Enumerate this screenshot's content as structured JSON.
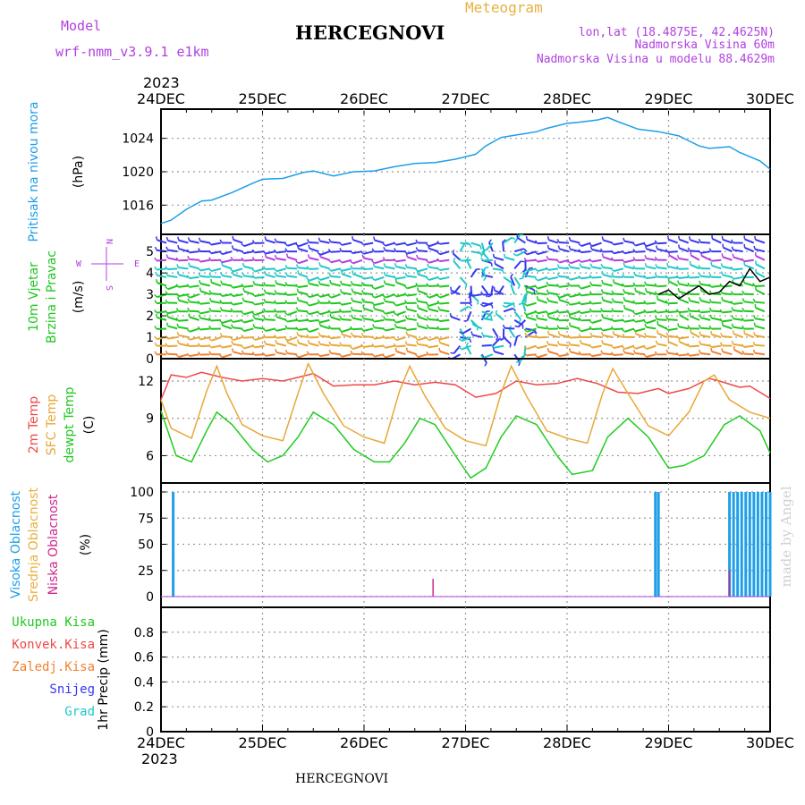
{
  "header": {
    "model_label": "Model",
    "model_name": "wrf-nmm_v3.9.1 e1km",
    "title": "HERCEGNOVI",
    "meteogram": "Meteogram",
    "lonlat": "lon,lat (18.4875E, 42.4625N)",
    "elevation": "Nadmorska Visina 60m",
    "model_elevation": "Nadmorska Visina u modelu 88.4629m",
    "footer_title": "HERCEGNOVI",
    "credit": "made by Angel"
  },
  "colors": {
    "pressure": "#1e9fe8",
    "temp2m": "#f04848",
    "sfc": "#e8a838",
    "dewpt": "#20cc20",
    "high": "#1e9fe8",
    "mid": "#e8b040",
    "low": "#d02890",
    "purple": "#b040e0",
    "green": "#20c820",
    "red": "#f04848",
    "orange": "#f08030",
    "blue": "#3838f0",
    "cyan": "#20c8c8"
  },
  "chart_data": [
    {
      "type": "line",
      "panel": "pressure",
      "year": "2023",
      "x_labels": [
        "24DEC",
        "25DEC",
        "26DEC",
        "27DEC",
        "28DEC",
        "29DEC",
        "30DEC"
      ],
      "ylabel_1": "Pritisak na nivou mora",
      "unit": "(hPa)",
      "ylim": [
        1012.5,
        1027.5
      ],
      "yticks": [
        1016,
        1020,
        1024
      ],
      "series": [
        {
          "x": [
            0,
            0.1,
            0.25,
            0.4,
            0.5,
            0.7,
            0.9,
            1.0,
            1.2,
            1.4,
            1.5,
            1.7,
            1.9,
            2.1,
            2.3,
            2.5,
            2.7,
            2.9,
            3.1,
            3.2,
            3.35,
            3.5,
            3.6,
            3.7,
            3.8,
            4.0,
            4.1,
            4.3,
            4.4,
            4.5,
            4.7,
            4.9,
            5.1,
            5.3,
            5.4,
            5.6,
            5.7,
            5.9,
            6.0
          ],
          "y": [
            1013.8,
            1014.2,
            1015.5,
            1016.5,
            1016.6,
            1017.5,
            1018.6,
            1019.1,
            1019.2,
            1019.9,
            1020.1,
            1019.5,
            1020.0,
            1020.1,
            1020.6,
            1021.0,
            1021.1,
            1021.5,
            1022.1,
            1023.1,
            1024.1,
            1024.4,
            1024.6,
            1024.8,
            1025.2,
            1025.8,
            1025.9,
            1026.2,
            1026.5,
            1026.0,
            1025.1,
            1024.8,
            1024.3,
            1023.1,
            1022.8,
            1023.0,
            1022.3,
            1021.3,
            1020.3
          ]
        }
      ]
    },
    {
      "type": "scatter",
      "panel": "wind",
      "ylabel_1": "10m Vjetar",
      "ylabel_2": "Brzina i Pravac",
      "unit": "(m/s)",
      "ylim": [
        0,
        5.8
      ],
      "yticks": [
        0,
        1,
        2,
        3,
        4,
        5
      ],
      "compass": {
        "n": "N",
        "w": "W",
        "e": "E",
        "s": "S"
      },
      "barb_levels": [
        0.2,
        0.6,
        1.0,
        1.4,
        1.8,
        2.2,
        2.6,
        3.0,
        3.4,
        3.8,
        4.2,
        4.6,
        5.0,
        5.4
      ],
      "speed_series": {
        "x": [
          4.9,
          5.0,
          5.1,
          5.2,
          5.3,
          5.4,
          5.5,
          5.6,
          5.7,
          5.8,
          5.9,
          6.0
        ],
        "y": [
          3.0,
          3.2,
          2.8,
          3.1,
          3.4,
          3.0,
          3.1,
          3.6,
          3.4,
          4.2,
          3.6,
          3.8
        ]
      }
    },
    {
      "type": "line",
      "panel": "temperature",
      "ylabel_1": "2m Temp",
      "ylabel_2": "SFC Temp",
      "ylabel_3": "dewpt Temp",
      "unit": "(C)",
      "ylim": [
        3.8,
        13.8
      ],
      "yticks": [
        6,
        9,
        12
      ],
      "series": [
        {
          "name": "2m Temp",
          "x": [
            0,
            0.1,
            0.25,
            0.4,
            0.6,
            0.8,
            1.0,
            1.2,
            1.4,
            1.5,
            1.7,
            1.9,
            2.1,
            2.3,
            2.5,
            2.7,
            2.9,
            3.1,
            3.3,
            3.4,
            3.5,
            3.7,
            3.9,
            4.1,
            4.3,
            4.5,
            4.7,
            4.9,
            5.0,
            5.2,
            5.4,
            5.5,
            5.7,
            5.8,
            6.0
          ],
          "y": [
            10.5,
            12.5,
            12.3,
            12.7,
            12.3,
            12.0,
            12.2,
            12.0,
            12.4,
            12.6,
            11.6,
            11.7,
            11.7,
            12.0,
            11.7,
            11.9,
            11.7,
            10.7,
            11.0,
            11.5,
            12.0,
            11.7,
            11.8,
            12.2,
            11.8,
            11.1,
            11.0,
            11.4,
            11.0,
            11.4,
            12.2,
            12.0,
            11.5,
            11.6,
            10.6
          ]
        },
        {
          "name": "SFC Temp",
          "x": [
            0,
            0.1,
            0.3,
            0.45,
            0.55,
            0.65,
            0.8,
            1.0,
            1.2,
            1.35,
            1.45,
            1.6,
            1.8,
            2.0,
            2.2,
            2.35,
            2.45,
            2.6,
            2.8,
            3.0,
            3.2,
            3.35,
            3.45,
            3.6,
            3.8,
            4.0,
            4.2,
            4.35,
            4.45,
            4.6,
            4.8,
            5.0,
            5.2,
            5.35,
            5.45,
            5.6,
            5.8,
            6.0
          ],
          "y": [
            10.5,
            8.2,
            7.4,
            11.2,
            13.2,
            11.0,
            8.5,
            7.6,
            7.2,
            11.0,
            13.4,
            11.0,
            8.4,
            7.5,
            7.0,
            11.2,
            13.2,
            10.8,
            8.2,
            7.2,
            6.8,
            11.0,
            13.2,
            10.8,
            8.0,
            7.4,
            7.0,
            11.0,
            13.0,
            11.0,
            8.4,
            7.6,
            9.5,
            12.0,
            12.5,
            10.5,
            9.5,
            9.0
          ]
        },
        {
          "name": "dewpt Temp",
          "x": [
            0,
            0.15,
            0.3,
            0.45,
            0.55,
            0.7,
            0.9,
            1.05,
            1.2,
            1.35,
            1.5,
            1.7,
            1.9,
            2.1,
            2.25,
            2.4,
            2.55,
            2.7,
            2.9,
            3.05,
            3.2,
            3.35,
            3.5,
            3.7,
            3.9,
            4.05,
            4.25,
            4.4,
            4.6,
            4.8,
            5.0,
            5.15,
            5.35,
            5.55,
            5.7,
            5.9,
            6.0
          ],
          "y": [
            9.6,
            6.0,
            5.5,
            8.0,
            9.5,
            8.5,
            6.5,
            5.5,
            6.0,
            7.5,
            9.5,
            8.5,
            6.5,
            5.5,
            5.5,
            7.0,
            9.0,
            8.5,
            6.0,
            4.2,
            5.0,
            7.5,
            9.2,
            8.5,
            6.0,
            4.5,
            4.8,
            7.5,
            9.0,
            7.5,
            5.0,
            5.2,
            6.0,
            8.5,
            9.2,
            8.0,
            6.2
          ]
        }
      ]
    },
    {
      "type": "bar",
      "panel": "cloud",
      "ylabel_1": "Visoka Oblacnost",
      "ylabel_2": "Srednja Oblacnost",
      "ylabel_3": "Niska Oblacnost",
      "unit": "(%)",
      "ylim": [
        0,
        100
      ],
      "yticks": [
        0,
        25,
        50,
        75,
        100
      ],
      "series": [
        {
          "name": "Visoka Oblacnost",
          "x": [
            0.12,
            4.87,
            4.9,
            5.6,
            5.64,
            5.68,
            5.72,
            5.76,
            5.8,
            5.84,
            5.88,
            5.92,
            5.96,
            6.0
          ],
          "y": [
            100,
            100,
            100,
            100,
            100,
            100,
            100,
            100,
            100,
            100,
            100,
            100,
            100,
            100
          ]
        },
        {
          "name": "Niska Oblacnost",
          "x": [
            2.68,
            5.6
          ],
          "y": [
            17,
            25
          ]
        }
      ]
    },
    {
      "type": "line",
      "panel": "precip",
      "year": "2023",
      "x_labels": [
        "24DEC",
        "25DEC",
        "26DEC",
        "27DEC",
        "28DEC",
        "29DEC",
        "30DEC"
      ],
      "ylabel_1": "1hr Precip",
      "unit": "(mm)",
      "ylim": [
        0,
        1.0
      ],
      "yticks": [
        0,
        0.2,
        0.4,
        0.6,
        0.8
      ],
      "legend": [
        "Ukupna Kisa",
        "Konvek.Kisa",
        "Zaledj.Kisa",
        "Snijeg",
        "Grad"
      ]
    }
  ]
}
